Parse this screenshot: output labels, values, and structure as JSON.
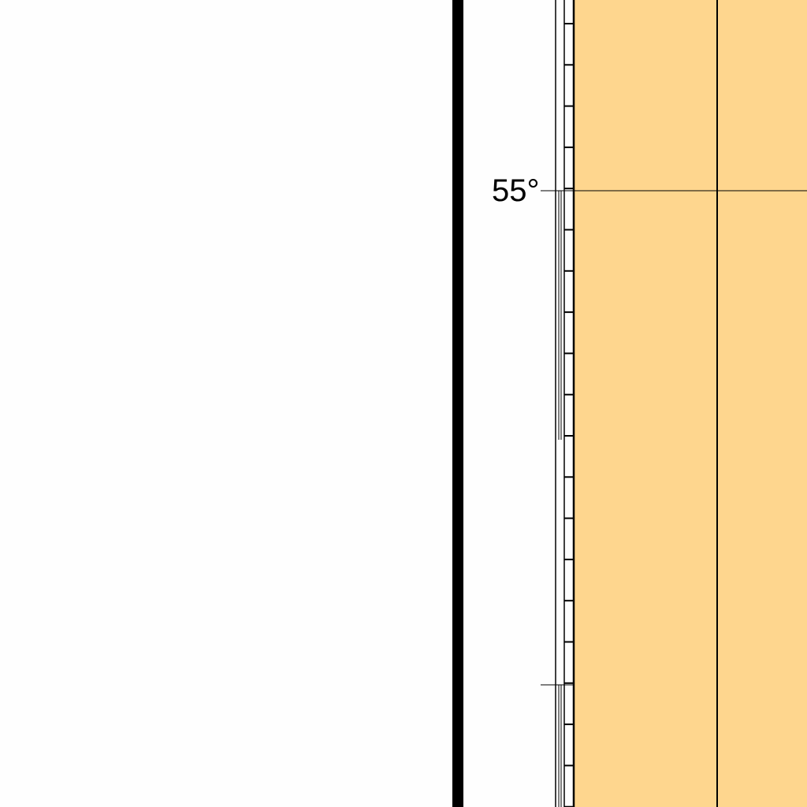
{
  "map": {
    "latitude_label": "55°",
    "colors": {
      "background": "#fefefe",
      "land_fill": "#fed68e",
      "line": "#000000"
    }
  }
}
